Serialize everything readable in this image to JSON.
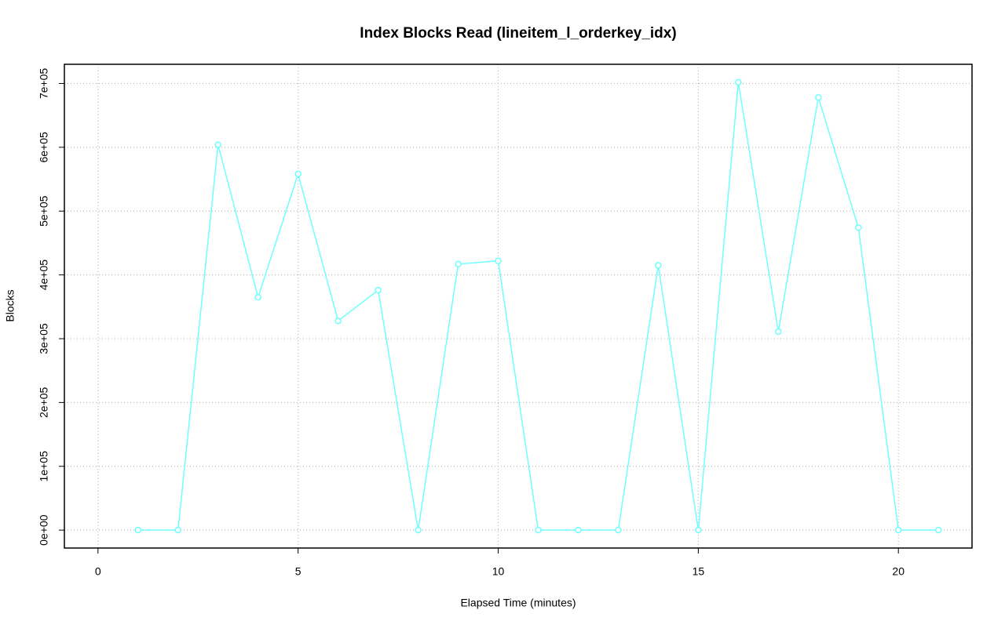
{
  "chart_data": {
    "type": "line",
    "title": "Index Blocks Read (lineitem_l_orderkey_idx)",
    "x_label": "Elapsed Time (minutes)",
    "y_label": "Blocks",
    "x": [
      1,
      2,
      3,
      4,
      5,
      6,
      7,
      8,
      9,
      10,
      11,
      12,
      13,
      14,
      15,
      16,
      17,
      18,
      19,
      20,
      21
    ],
    "values": [
      0,
      0,
      604000,
      365000,
      558000,
      328000,
      376000,
      0,
      417000,
      422000,
      0,
      0,
      0,
      415000,
      0,
      702000,
      311000,
      678000,
      474000,
      0,
      0
    ],
    "color": "#70ffff",
    "xlim": [
      -0.84,
      21.84
    ],
    "ylim": [
      -28080,
      730080
    ],
    "xticks": [
      0,
      5,
      10,
      15,
      20
    ],
    "yticks": [
      {
        "value": 0,
        "label": "0e+00"
      },
      {
        "value": 100000,
        "label": "1e+05"
      },
      {
        "value": 200000,
        "label": "2e+05"
      },
      {
        "value": 300000,
        "label": "3e+05"
      },
      {
        "value": 400000,
        "label": "4e+05"
      },
      {
        "value": 500000,
        "label": "5e+05"
      },
      {
        "value": 600000,
        "label": "6e+05"
      },
      {
        "value": 700000,
        "label": "7e+05"
      }
    ],
    "grid": true
  }
}
